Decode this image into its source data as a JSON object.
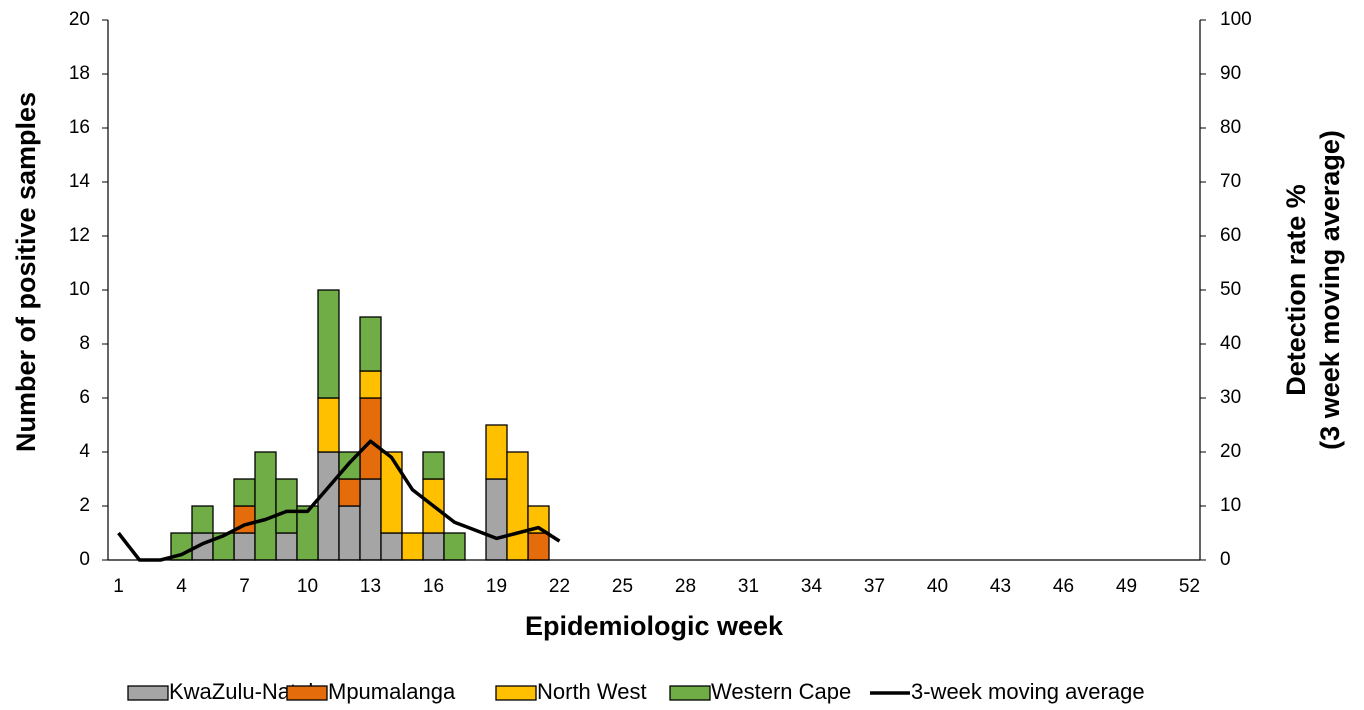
{
  "chart_data": {
    "type": "bar",
    "stacked": true,
    "x_label": "Epidemiologic week",
    "y_label": "Number of  positive samples",
    "y2_label": [
      "Detection rate %",
      "(3 week moving average)"
    ],
    "categories": [
      1,
      null,
      null,
      4,
      null,
      null,
      7,
      null,
      null,
      10,
      null,
      null,
      13,
      null,
      null,
      16,
      null,
      null,
      19,
      null,
      null,
      22,
      null,
      null,
      25,
      null,
      null,
      28,
      null,
      null,
      31,
      null,
      null,
      34,
      null,
      null,
      37,
      null,
      null,
      40,
      null,
      null,
      43,
      null,
      null,
      46,
      null,
      null,
      49,
      null,
      null,
      52
    ],
    "ylim": [
      0,
      20
    ],
    "yticks": [
      0,
      2,
      4,
      6,
      8,
      10,
      12,
      14,
      16,
      18,
      20
    ],
    "y2lim": [
      0,
      100
    ],
    "y2ticks": [
      0,
      10,
      20,
      30,
      40,
      50,
      60,
      70,
      80,
      90,
      100
    ],
    "series": [
      {
        "name": "KwaZulu-Natal",
        "color": "#a5a5a5",
        "type": "bar",
        "values": [
          0,
          0,
          0,
          0,
          1,
          0,
          1,
          0,
          1,
          0,
          4,
          2,
          3,
          1,
          0,
          1,
          0,
          0,
          3,
          0,
          0,
          0,
          0,
          0,
          0,
          0,
          0,
          0,
          0,
          0,
          0,
          0,
          0,
          0,
          0,
          0,
          0,
          0,
          0,
          0,
          0,
          0,
          0,
          0,
          0,
          0,
          0,
          0,
          0,
          0,
          0,
          0
        ]
      },
      {
        "name": "Mpumalanga",
        "color": "#e46c0a",
        "type": "bar",
        "values": [
          0,
          0,
          0,
          0,
          0,
          0,
          1,
          0,
          0,
          0,
          0,
          1,
          3,
          0,
          0,
          0,
          0,
          0,
          0,
          0,
          1,
          0,
          0,
          0,
          0,
          0,
          0,
          0,
          0,
          0,
          0,
          0,
          0,
          0,
          0,
          0,
          0,
          0,
          0,
          0,
          0,
          0,
          0,
          0,
          0,
          0,
          0,
          0,
          0,
          0,
          0,
          0
        ]
      },
      {
        "name": "North West",
        "color": "#ffc000",
        "type": "bar",
        "values": [
          0,
          0,
          0,
          0,
          0,
          0,
          0,
          0,
          0,
          0,
          2,
          0,
          1,
          3,
          1,
          2,
          0,
          0,
          2,
          4,
          1,
          0,
          0,
          0,
          0,
          0,
          0,
          0,
          0,
          0,
          0,
          0,
          0,
          0,
          0,
          0,
          0,
          0,
          0,
          0,
          0,
          0,
          0,
          0,
          0,
          0,
          0,
          0,
          0,
          0,
          0,
          0
        ]
      },
      {
        "name": "Western Cape",
        "color": "#70ad47",
        "type": "bar",
        "values": [
          0,
          0,
          0,
          1,
          1,
          1,
          1,
          4,
          2,
          2,
          4,
          1,
          2,
          0,
          0,
          1,
          1,
          0,
          0,
          0,
          0,
          0,
          0,
          0,
          0,
          0,
          0,
          0,
          0,
          0,
          0,
          0,
          0,
          0,
          0,
          0,
          0,
          0,
          0,
          0,
          0,
          0,
          0,
          0,
          0,
          0,
          0,
          0,
          0,
          0,
          0,
          0
        ]
      },
      {
        "name": "3-week moving average",
        "color": "#000000",
        "type": "line",
        "axis": "y2",
        "values": [
          5,
          0,
          0,
          1,
          3,
          4.5,
          6.5,
          7.5,
          9,
          9,
          13.5,
          18,
          22,
          19,
          13,
          10,
          7,
          5.5,
          4,
          5,
          6,
          3.5,
          null,
          null,
          null,
          null,
          null,
          null,
          null,
          null,
          null,
          null,
          null,
          null,
          null,
          null,
          null,
          null,
          null,
          null,
          null,
          null,
          null,
          null,
          null,
          null,
          null,
          null,
          null,
          null,
          null,
          null
        ]
      }
    ]
  }
}
